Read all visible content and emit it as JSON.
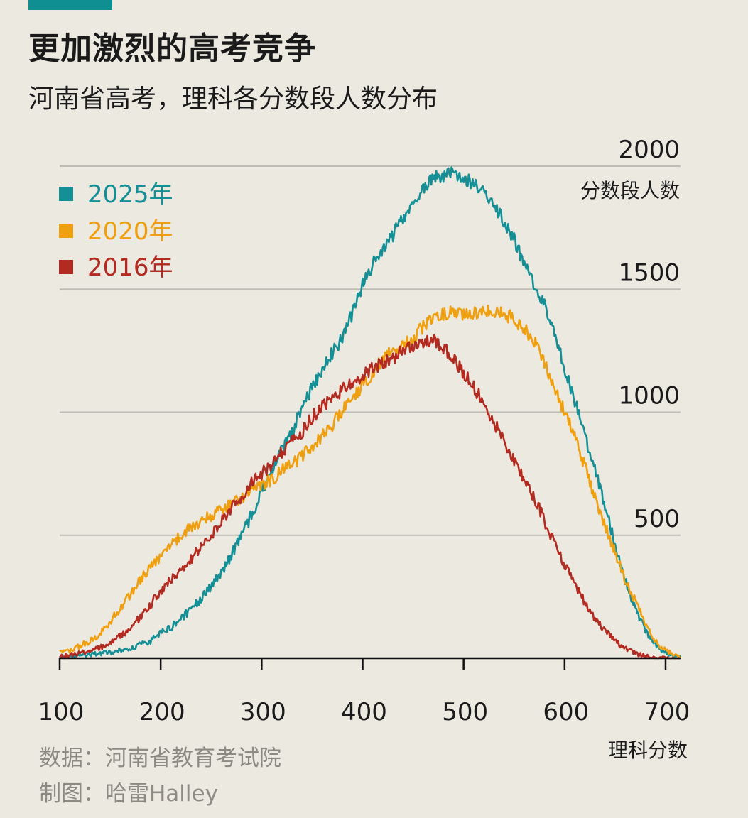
{
  "header": {
    "title": "更加激烈的高考竞争",
    "subtitle": "河南省高考，理科各分数段人数分布"
  },
  "colors": {
    "accent": "#0f8f92",
    "s2025": "#138f95",
    "s2020": "#eea010",
    "s2016": "#b22a20",
    "grid": "#bfbcb6",
    "axis": "#111111"
  },
  "footer": {
    "source": "数据：河南省教育考试院",
    "credit": "制图：哈雷Halley"
  },
  "chart_data": {
    "type": "line",
    "title": "",
    "ylabel": "分数段人数",
    "xlabel": "理科分数",
    "xlim": [
      100,
      715
    ],
    "ylim": [
      0,
      2000
    ],
    "x_ticks": [
      100,
      200,
      300,
      400,
      500,
      600,
      700
    ],
    "y_ticks": [
      500,
      1000,
      1500,
      2000
    ],
    "grid": "horizontal",
    "legend_position": "top-left",
    "x_step": 10,
    "series": [
      {
        "name": "2025年",
        "color": "#138f95",
        "x": [
          100,
          110,
          120,
          130,
          140,
          150,
          160,
          170,
          180,
          190,
          200,
          210,
          220,
          230,
          240,
          250,
          260,
          270,
          280,
          290,
          300,
          310,
          320,
          330,
          340,
          350,
          360,
          370,
          380,
          390,
          400,
          410,
          420,
          430,
          440,
          450,
          460,
          470,
          480,
          490,
          500,
          510,
          520,
          530,
          540,
          550,
          560,
          570,
          580,
          590,
          600,
          610,
          620,
          630,
          640,
          650,
          660,
          670,
          680,
          690,
          700,
          710,
          715
        ],
        "y": [
          5,
          8,
          12,
          15,
          20,
          25,
          32,
          40,
          55,
          70,
          100,
          125,
          160,
          200,
          240,
          295,
          350,
          420,
          500,
          580,
          680,
          760,
          850,
          920,
          1020,
          1100,
          1170,
          1240,
          1300,
          1400,
          1520,
          1600,
          1660,
          1720,
          1790,
          1840,
          1910,
          1950,
          1960,
          1970,
          1950,
          1930,
          1900,
          1840,
          1780,
          1700,
          1600,
          1510,
          1440,
          1320,
          1180,
          1050,
          900,
          760,
          620,
          460,
          320,
          200,
          110,
          55,
          20,
          8,
          5
        ]
      },
      {
        "name": "2020年",
        "color": "#eea010",
        "x": [
          100,
          110,
          120,
          130,
          140,
          150,
          160,
          170,
          180,
          190,
          200,
          210,
          220,
          230,
          240,
          250,
          260,
          270,
          280,
          290,
          300,
          310,
          320,
          330,
          340,
          350,
          360,
          370,
          380,
          390,
          400,
          410,
          420,
          430,
          440,
          450,
          460,
          470,
          480,
          490,
          500,
          510,
          520,
          530,
          540,
          550,
          560,
          570,
          580,
          590,
          600,
          610,
          620,
          630,
          640,
          650,
          660,
          670,
          680,
          690,
          700,
          710,
          715
        ],
        "y": [
          20,
          30,
          50,
          70,
          100,
          150,
          200,
          260,
          320,
          370,
          410,
          460,
          500,
          530,
          560,
          580,
          600,
          630,
          650,
          680,
          700,
          730,
          760,
          790,
          820,
          860,
          900,
          950,
          1010,
          1060,
          1110,
          1160,
          1220,
          1250,
          1270,
          1300,
          1350,
          1380,
          1400,
          1410,
          1400,
          1400,
          1410,
          1410,
          1400,
          1380,
          1340,
          1290,
          1200,
          1100,
          1000,
          900,
          780,
          660,
          540,
          430,
          320,
          230,
          140,
          70,
          30,
          10,
          5
        ]
      },
      {
        "name": "2016年",
        "color": "#b22a20",
        "x": [
          100,
          110,
          120,
          130,
          140,
          150,
          160,
          170,
          180,
          190,
          200,
          210,
          220,
          230,
          240,
          250,
          260,
          270,
          280,
          290,
          300,
          310,
          320,
          330,
          340,
          350,
          360,
          370,
          380,
          390,
          400,
          410,
          420,
          430,
          440,
          450,
          460,
          470,
          480,
          490,
          500,
          510,
          520,
          530,
          540,
          550,
          560,
          570,
          580,
          590,
          600,
          610,
          620,
          630,
          640,
          650,
          660,
          670,
          680,
          690,
          700,
          710,
          715
        ],
        "y": [
          8,
          12,
          20,
          30,
          45,
          60,
          90,
          120,
          170,
          220,
          270,
          320,
          360,
          400,
          450,
          500,
          560,
          610,
          660,
          710,
          750,
          790,
          840,
          880,
          920,
          980,
          1020,
          1060,
          1090,
          1120,
          1150,
          1180,
          1200,
          1220,
          1250,
          1270,
          1290,
          1290,
          1260,
          1220,
          1160,
          1100,
          1040,
          960,
          880,
          810,
          720,
          650,
          560,
          460,
          380,
          300,
          230,
          160,
          110,
          70,
          40,
          20,
          10,
          3,
          0,
          0,
          0
        ]
      }
    ]
  }
}
